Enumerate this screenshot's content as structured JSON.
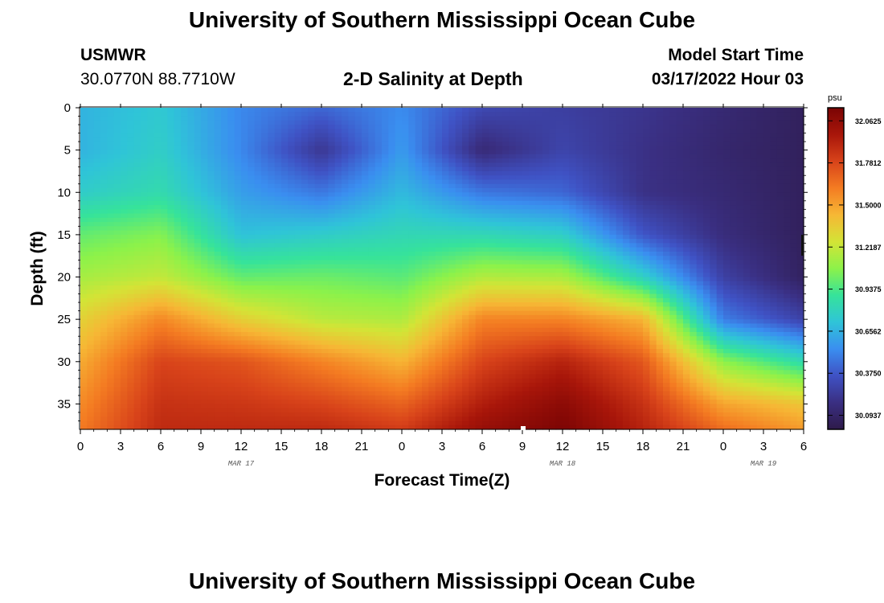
{
  "header": {
    "title": "University of Southern Mississippi Ocean Cube",
    "station": "USMWR",
    "coords": "30.0770N  88.7710W",
    "subtitle": "2-D Salinity at Depth",
    "model_label": "Model Start Time",
    "model_time": "03/17/2022 Hour 03"
  },
  "footer": {
    "title": "University of Southern Mississippi Ocean Cube"
  },
  "chart_data": {
    "type": "heatmap",
    "title": "2-D Salinity at Depth",
    "xlabel": "Forecast Time(Z)",
    "ylabel": "Depth (ft)",
    "x_ticks": [
      "0",
      "3",
      "6",
      "9",
      "12",
      "15",
      "18",
      "21",
      "0",
      "3",
      "6",
      "9",
      "12",
      "15",
      "18",
      "21",
      "0",
      "3",
      "6"
    ],
    "x_range_hours": [
      0,
      54
    ],
    "date_labels": [
      {
        "label": "MAR 17",
        "hour": 12
      },
      {
        "label": "MAR 18",
        "hour": 36
      },
      {
        "label": "MAR 19",
        "hour": 51
      }
    ],
    "y_ticks": [
      "0",
      "5",
      "10",
      "15",
      "20",
      "25",
      "30",
      "35"
    ],
    "y_range_ft": [
      0,
      38
    ],
    "colorbar": {
      "unit": "psu",
      "min": 30.0,
      "max": 32.15,
      "labels": [
        "32.0625",
        "31.7812",
        "31.5000",
        "31.2187",
        "30.9375",
        "30.6562",
        "30.3750",
        "30.0937"
      ],
      "colors": [
        "#2e1a4a",
        "#3a2f82",
        "#3f52c4",
        "#3a8ef0",
        "#2fc4d8",
        "#36e39a",
        "#8cf24a",
        "#d3e436",
        "#f6b735",
        "#f47c22",
        "#d8431a",
        "#a8160a",
        "#7a0404"
      ]
    },
    "salinity_psu_grid": {
      "hours": [
        0,
        6,
        12,
        18,
        24,
        30,
        36,
        42,
        48,
        54
      ],
      "depths_ft": [
        0,
        5,
        10,
        15,
        20,
        25,
        30,
        35,
        38
      ],
      "values": [
        [
          30.66,
          30.74,
          30.52,
          30.42,
          30.53,
          30.31,
          30.26,
          30.21,
          30.13,
          30.06
        ],
        [
          30.66,
          30.77,
          30.52,
          30.22,
          30.58,
          30.14,
          30.29,
          30.19,
          30.11,
          30.06
        ],
        [
          30.76,
          30.84,
          30.59,
          30.47,
          30.68,
          30.47,
          30.42,
          30.19,
          30.13,
          30.06
        ],
        [
          30.99,
          31.06,
          30.71,
          30.76,
          30.82,
          30.82,
          30.77,
          30.37,
          30.16,
          30.06
        ],
        [
          31.14,
          31.21,
          30.99,
          31.01,
          30.97,
          31.17,
          31.15,
          30.78,
          30.27,
          30.07
        ],
        [
          31.33,
          31.58,
          31.34,
          31.19,
          31.16,
          31.59,
          31.59,
          31.44,
          30.49,
          30.28
        ],
        [
          31.47,
          31.79,
          31.74,
          31.59,
          31.44,
          31.79,
          31.92,
          31.73,
          31.08,
          30.84
        ],
        [
          31.57,
          31.86,
          31.84,
          31.79,
          31.69,
          31.94,
          32.08,
          31.86,
          31.49,
          31.38
        ],
        [
          31.62,
          31.89,
          31.89,
          31.89,
          31.82,
          32.04,
          32.14,
          31.92,
          31.66,
          31.52
        ]
      ]
    },
    "grid": false,
    "legend": "right colorbar"
  }
}
